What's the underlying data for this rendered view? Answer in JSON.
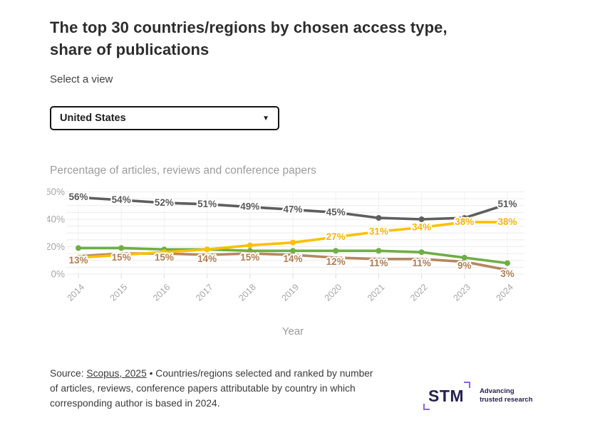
{
  "header": {
    "title": "The top 30 countries/regions by chosen access type, share of publications"
  },
  "view_selector": {
    "label": "Select a view",
    "selected_option": "United States",
    "caret": "▼"
  },
  "chart": {
    "subtitle": "Percentage of articles, reviews and conference papers"
  },
  "chart_data": {
    "type": "line",
    "title": "Percentage of articles, reviews and conference papers",
    "x": [
      2014,
      2015,
      2016,
      2017,
      2018,
      2019,
      2020,
      2021,
      2022,
      2023,
      2024
    ],
    "xlabel": "Year",
    "ylabel": "",
    "ylim": [
      0,
      60
    ],
    "y_major_tick_step": 20,
    "y_grid_step": 5,
    "y_tick_suffix": "%",
    "grid": true,
    "legend_position": "none",
    "series": [
      {
        "name": "gray-line",
        "color": "#5e5e5e",
        "label_color": "#595959",
        "values": [
          56,
          54,
          52,
          51,
          49,
          47,
          45,
          41,
          40,
          41,
          51
        ],
        "label_mask": [
          1,
          1,
          1,
          1,
          1,
          1,
          1,
          0,
          0,
          0,
          1
        ],
        "label_dy": 4
      },
      {
        "name": "green-line",
        "color": "#6fae44",
        "label_color": "#6fae44",
        "values": [
          19,
          19,
          18,
          18,
          17,
          17,
          17,
          17,
          16,
          12,
          8
        ],
        "label_mask": [
          0,
          0,
          0,
          0,
          0,
          0,
          0,
          0,
          0,
          0,
          0
        ],
        "label_dy": 4
      },
      {
        "name": "brown-line",
        "color": "#b5875f",
        "label_color": "#ad7e54",
        "values": [
          13,
          15,
          15,
          14,
          15,
          14,
          12,
          11,
          11,
          9,
          3
        ],
        "label_mask": [
          1,
          1,
          1,
          1,
          1,
          1,
          1,
          1,
          1,
          1,
          1
        ],
        "label_dy": 10
      },
      {
        "name": "yellow-line",
        "color": "#fcc000",
        "label_color": "#f7b40a",
        "values": [
          12,
          14,
          16,
          18,
          21,
          23,
          27,
          31,
          34,
          38,
          38
        ],
        "label_mask": [
          0,
          0,
          0,
          0,
          0,
          0,
          1,
          1,
          1,
          1,
          1
        ],
        "label_dy": 4
      }
    ]
  },
  "footer": {
    "source_prefix": "Source: ",
    "source_link": "Scopus, 2025",
    "source_rest": " • Countries/regions selected and ranked by number of articles, reviews, conference papers attributable by country in which corresponding author is based in 2024."
  },
  "logo": {
    "text": "STM",
    "tagline_line1": "Advancing",
    "tagline_line2": "trusted research"
  },
  "colors": {
    "grid": "#ebebeb",
    "axis_text": "#a6a6a6",
    "axis_title": "#9b9b9b",
    "brand_purple": "#8a63e8",
    "brand_navy": "#27224f"
  }
}
